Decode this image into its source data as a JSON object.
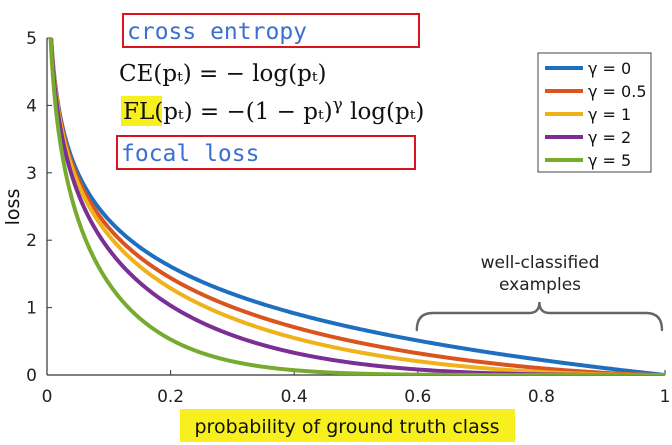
{
  "chart_data": {
    "type": "line",
    "xlabel": "probability of ground truth class",
    "ylabel": "loss",
    "xlim": [
      0,
      1
    ],
    "ylim": [
      0,
      5
    ],
    "x_ticks": [
      "0",
      "0.2",
      "0.4",
      "0.6",
      "0.8",
      "1"
    ],
    "y_ticks": [
      "0",
      "1",
      "2",
      "3",
      "4",
      "5"
    ],
    "legend_position": "top-right",
    "series": [
      {
        "name": "γ = 0",
        "gamma": 0,
        "color": "#1f6fc0"
      },
      {
        "name": "γ = 0.5",
        "gamma": 0.5,
        "color": "#d9541e"
      },
      {
        "name": "γ = 1",
        "gamma": 1,
        "color": "#f0b21a"
      },
      {
        "name": "γ = 2",
        "gamma": 2,
        "color": "#7b2f95"
      },
      {
        "name": "γ = 5",
        "gamma": 5,
        "color": "#77ab30"
      }
    ],
    "annotations": {
      "cross_entropy_label": "cross entropy",
      "ce_formula": "CE(pₜ) = − log(pₜ)",
      "focal_loss_label": "focal loss",
      "fl_formula_lhs": "FL",
      "fl_formula_rest": "(pₜ) = −(1 − pₜ)",
      "fl_formula_exp": "γ",
      "fl_formula_tail": " log(pₜ)",
      "brace_label_line1": "well-classified",
      "brace_label_line2": "examples",
      "brace_range": [
        0.6,
        1.0
      ]
    },
    "highlight_color": "#f7ef1e",
    "box_color": "#d9141e"
  }
}
